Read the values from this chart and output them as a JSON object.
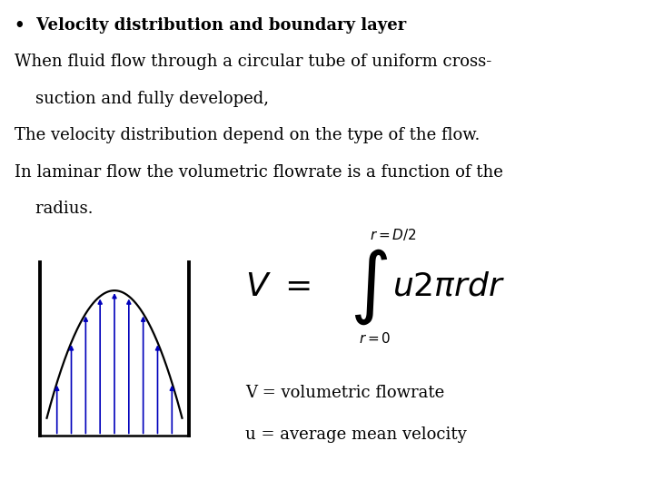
{
  "background_color": "#ffffff",
  "bullet_text": "•  Velocity distribution and boundary layer",
  "line1": "When fluid flow through a circular tube of uniform cross-",
  "line2": "    suction and fully developed,",
  "line3": "The velocity distribution depend on the type of the flow.",
  "line4": "In laminar flow the volumetric flowrate is a function of the",
  "line5": "    radius.",
  "annotation1": "V = volumetric flowrate",
  "annotation2": "u = average mean velocity",
  "curve_color": "#0000bb",
  "arrow_color": "#0000bb",
  "wall_color": "#000000",
  "text_color": "#000000",
  "font_size_body": 13,
  "font_size_annotation": 13,
  "font_size_formula_large": 26,
  "font_size_formula_small": 11
}
